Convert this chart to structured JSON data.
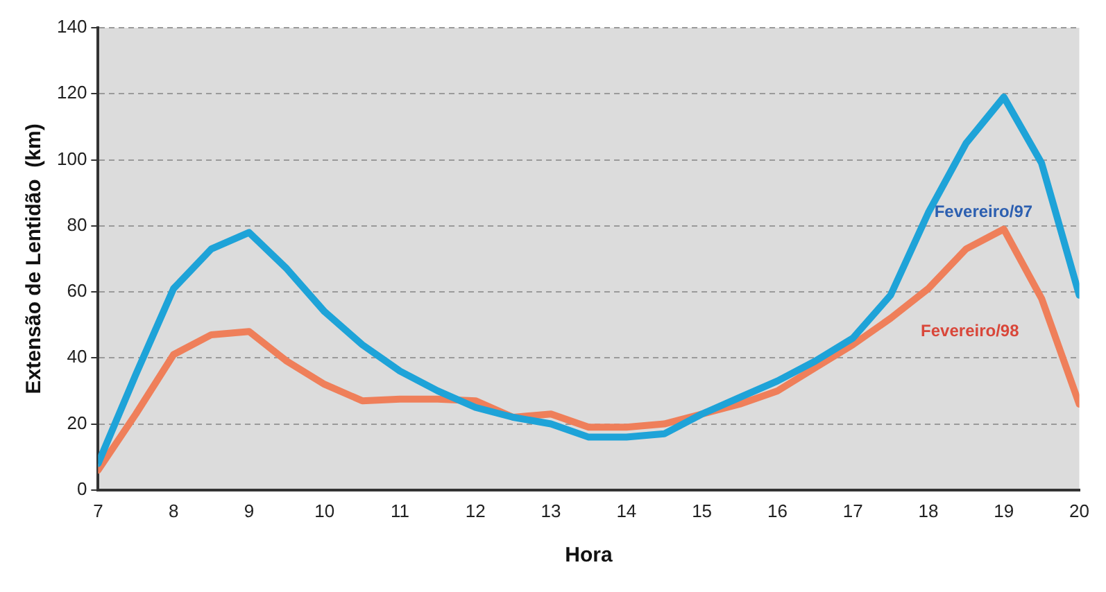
{
  "chart_data": {
    "type": "line",
    "xlabel": "Hora",
    "ylabel": "Extensão de Lentidão  (km)",
    "x": [
      7,
      7.5,
      8,
      8.5,
      9,
      9.5,
      10,
      10.5,
      11,
      11.5,
      12,
      12.5,
      13,
      13.5,
      14,
      14.5,
      15,
      15.5,
      16,
      16.5,
      17,
      17.5,
      18,
      18.5,
      19,
      19.5,
      20
    ],
    "series": [
      {
        "name": "Fevereiro/97",
        "color": "#1ea3d8",
        "values": [
          8,
          35,
          61,
          73,
          78,
          67,
          54,
          44,
          36,
          30,
          25,
          22,
          20,
          16,
          16,
          17,
          23,
          28,
          33,
          39,
          46,
          59,
          84,
          105,
          119,
          99,
          59
        ]
      },
      {
        "name": "Fevereiro/98",
        "color": "#ef7f5a",
        "values": [
          6,
          23,
          41,
          47,
          48,
          39,
          32,
          27,
          27.5,
          27.5,
          27,
          22,
          23,
          19,
          19,
          20,
          23,
          26,
          30,
          37,
          44,
          52,
          61,
          73,
          79,
          58,
          26
        ]
      }
    ],
    "xlim": [
      7,
      20
    ],
    "xticks": [
      7,
      8,
      9,
      10,
      11,
      12,
      13,
      14,
      15,
      16,
      17,
      18,
      19,
      20
    ],
    "ylim": [
      0,
      140
    ],
    "yticks": [
      0,
      20,
      40,
      60,
      80,
      100,
      120,
      140
    ],
    "grid": "y",
    "legend": false,
    "marker": "none",
    "line_style": "solid"
  }
}
